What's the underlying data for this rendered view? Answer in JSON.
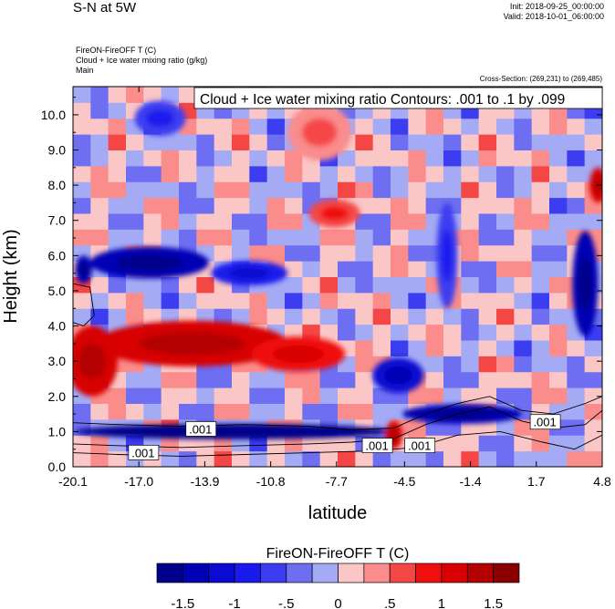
{
  "header": {
    "title": "S-N at 5W",
    "init": "Init: 2018-09-25_00:00:00",
    "valid": "Valid: 2018-10-01_06:00:00",
    "field_line1": "FireON-FireOFF T   (C)",
    "field_line2": "Cloud + Ice water mixing ratio   (g/kg)",
    "field_line3": "Main",
    "cross_section": "Cross-Section: (269,231) to (269,485)"
  },
  "chart_data": {
    "type": "heatmap",
    "title": "S-N at 5W",
    "xlabel": "latitude",
    "ylabel": "Height (km)",
    "x_ticks": [
      "-20.1",
      "-17.0",
      "-13.9",
      "-10.8",
      "-7.7",
      "-4.5",
      "-1.4",
      "1.7",
      "4.8"
    ],
    "x_tick_values": [
      -20.1,
      -17.0,
      -13.9,
      -10.8,
      -7.7,
      -4.5,
      -1.4,
      1.7,
      4.8
    ],
    "y_ticks": [
      "0.0",
      "1.0",
      "2.0",
      "3.0",
      "4.0",
      "5.0",
      "6.0",
      "7.0",
      "8.0",
      "9.0",
      "10.0"
    ],
    "y_tick_values": [
      0,
      1,
      2,
      3,
      4,
      5,
      6,
      7,
      8,
      9,
      10
    ],
    "xlim": [
      -20.1,
      4.8
    ],
    "ylim": [
      0,
      10.8
    ],
    "contour_legend": "Cloud + Ice water mixing ratio Contours: .001 to .1 by .099",
    "contour_labels": [
      {
        "text": ".001",
        "x": -14.1,
        "y": 1.05
      },
      {
        "text": ".001",
        "x": -16.8,
        "y": 0.38
      },
      {
        "text": ".001",
        "x": -5.8,
        "y": 0.58
      },
      {
        "text": ".001",
        "x": -3.8,
        "y": 0.58
      },
      {
        "text": ".001",
        "x": 2.1,
        "y": 1.25
      }
    ],
    "colorbar": {
      "label": "FireON-FireOFF T  (C)",
      "levels": [
        -1.75,
        -1.5,
        -1.25,
        -1.0,
        -0.75,
        -0.5,
        -0.25,
        0,
        0.25,
        0.5,
        0.75,
        1.0,
        1.25,
        1.5,
        1.75
      ],
      "tick_labels": [
        "-1.5",
        "-1",
        "-.5",
        "0",
        ".5",
        "1",
        "1.5"
      ],
      "tick_values": [
        -1.5,
        -1.0,
        -0.5,
        0,
        0.5,
        1.0,
        1.5
      ],
      "colors": [
        "#00008a",
        "#0000b4",
        "#0a0ad2",
        "#1a1aee",
        "#3c3cf0",
        "#6e6ef2",
        "#a5aaf5",
        "#fbc6c6",
        "#fa8c8c",
        "#f54646",
        "#f00f0f",
        "#d80000",
        "#b40000",
        "#8a0000"
      ]
    },
    "features": [
      {
        "name": "upper-blue-layer",
        "type": "ellipse",
        "x": -16.5,
        "y": 5.8,
        "rx": 2.8,
        "ry": 0.45,
        "value": -1.3
      },
      {
        "name": "upper-blue-2",
        "type": "ellipse",
        "x": -11.8,
        "y": 5.5,
        "rx": 1.8,
        "ry": 0.35,
        "value": -0.9
      },
      {
        "name": "mid-red-layer",
        "type": "ellipse",
        "x": -14.5,
        "y": 3.5,
        "rx": 4.5,
        "ry": 0.65,
        "value": 1.1
      },
      {
        "name": "mid-red-left",
        "type": "ellipse",
        "x": -19.2,
        "y": 3.0,
        "rx": 1.2,
        "ry": 1.0,
        "value": 1.0
      },
      {
        "name": "mid-red-2",
        "type": "ellipse",
        "x": -9.5,
        "y": 3.2,
        "rx": 2.2,
        "ry": 0.5,
        "value": 0.8
      },
      {
        "name": "low-blue-band",
        "type": "ellipse",
        "x": -12.5,
        "y": 1.0,
        "rx": 7.5,
        "ry": 0.22,
        "value": -1.6
      },
      {
        "name": "low-blue-band-right",
        "type": "ellipse",
        "x": -1.8,
        "y": 1.5,
        "rx": 2.8,
        "ry": 0.28,
        "value": -1.5
      },
      {
        "name": "mid-blue-right",
        "type": "ellipse",
        "x": -4.8,
        "y": 2.6,
        "rx": 1.2,
        "ry": 0.5,
        "value": -1.2
      },
      {
        "name": "right-blue-upper",
        "type": "ellipse",
        "x": 4.0,
        "y": 5.2,
        "rx": 0.6,
        "ry": 1.5,
        "value": -1.4
      },
      {
        "name": "right-red-upper",
        "type": "ellipse",
        "x": 4.6,
        "y": 8.0,
        "rx": 0.4,
        "ry": 0.5,
        "value": 1.0
      },
      {
        "name": "red-near-surface",
        "type": "ellipse",
        "x": -5.0,
        "y": 0.9,
        "rx": 0.4,
        "ry": 0.4,
        "value": 1.2
      },
      {
        "name": "left-blue-top",
        "type": "ellipse",
        "x": -19.6,
        "y": 5.6,
        "rx": 0.4,
        "ry": 0.4,
        "value": -1.5
      },
      {
        "name": "top-blue-patch",
        "type": "ellipse",
        "x": -16.0,
        "y": 9.9,
        "rx": 1.2,
        "ry": 0.5,
        "value": -0.6
      },
      {
        "name": "top-red-patch",
        "type": "ellipse",
        "x": -8.5,
        "y": 9.5,
        "rx": 1.5,
        "ry": 0.8,
        "value": 0.4
      },
      {
        "name": "mid-red-7",
        "type": "ellipse",
        "x": -7.8,
        "y": 7.2,
        "rx": 1.2,
        "ry": 0.4,
        "value": 0.6
      },
      {
        "name": "right-blue-mid",
        "type": "ellipse",
        "x": -2.5,
        "y": 6.0,
        "rx": 0.5,
        "ry": 1.5,
        "value": -0.7
      }
    ]
  }
}
